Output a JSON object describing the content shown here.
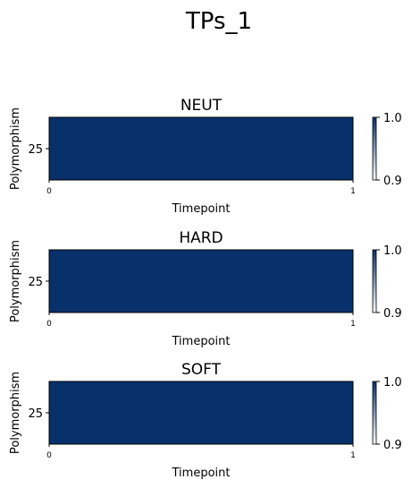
{
  "figure": {
    "title": "TPs_1"
  },
  "colors": {
    "cell": "#08306b",
    "colormap_low": "#ffffff",
    "colormap_high": "#08306b",
    "frame": "#000000",
    "background": "#ffffff"
  },
  "chart_data": [
    {
      "type": "heatmap",
      "title": "NEUT",
      "xlabel": "Timepoint",
      "ylabel": "Polymorphism",
      "x_ticks": [
        "0",
        "1"
      ],
      "y_ticks": [
        "25"
      ],
      "values": [
        [
          1.0
        ]
      ],
      "colorbar": {
        "min": 0.9,
        "max": 1.0,
        "ticks": [
          "0.9",
          "1.0"
        ]
      }
    },
    {
      "type": "heatmap",
      "title": "HARD",
      "xlabel": "Timepoint",
      "ylabel": "Polymorphism",
      "x_ticks": [
        "0",
        "1"
      ],
      "y_ticks": [
        "25"
      ],
      "values": [
        [
          1.0
        ]
      ],
      "colorbar": {
        "min": 0.9,
        "max": 1.0,
        "ticks": [
          "0.9",
          "1.0"
        ]
      }
    },
    {
      "type": "heatmap",
      "title": "SOFT",
      "xlabel": "Timepoint",
      "ylabel": "Polymorphism",
      "x_ticks": [
        "0",
        "1"
      ],
      "y_ticks": [
        "25"
      ],
      "values": [
        [
          1.0
        ]
      ],
      "colorbar": {
        "min": 0.9,
        "max": 1.0,
        "ticks": [
          "0.9",
          "1.0"
        ]
      }
    }
  ]
}
